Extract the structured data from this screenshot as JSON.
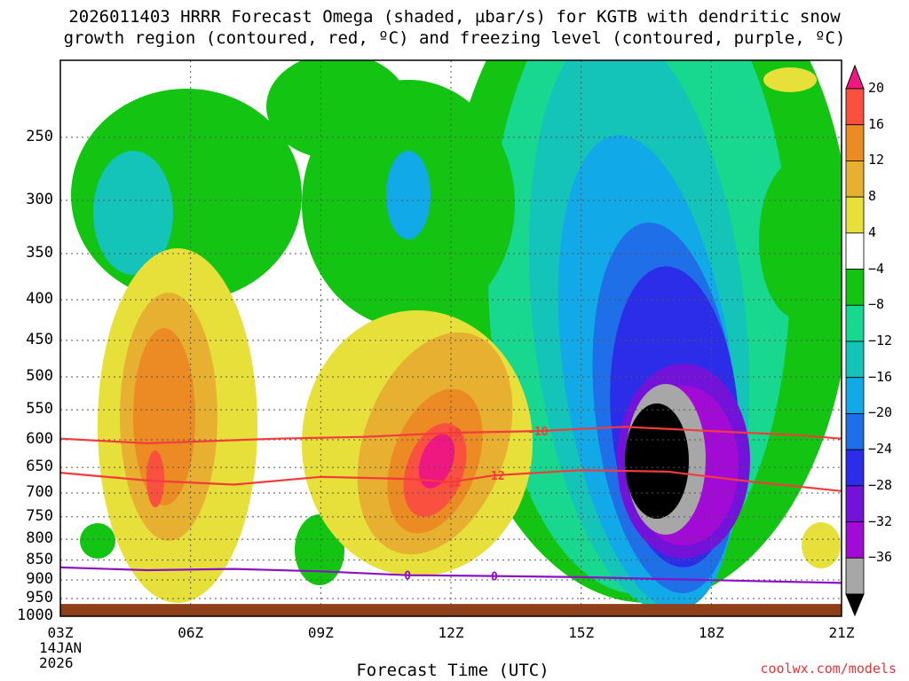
{
  "title": {
    "line1": "2026011403 HRRR Forecast Omega (shaded, µbar/s) for KGTB with dendritic snow",
    "line2": "growth region (contoured, red, ºC) and freezing level (contoured, purple, ºC)"
  },
  "footer": {
    "xlabel": "Forecast Time (UTC)",
    "credit": "coolwx.com/models"
  },
  "colors": {
    "ground": "#8f3f19",
    "temp_contour": "#f23b3b",
    "freezing_contour": "#8a12c4",
    "omega_scale": [
      "#000000",
      "#a7a7a7",
      "#a20ad6",
      "#7313d9",
      "#2b2de8",
      "#1f70e8",
      "#12a9e8",
      "#14c4b8",
      "#18d890",
      "#13c413",
      "#ffffff",
      "#e8e03a",
      "#e8b030",
      "#ec8a24",
      "#fa5040",
      "#ee1880"
    ]
  },
  "chart_data": {
    "type": "heatmap",
    "title": "2026011403 HRRR Forecast Omega (shaded, µbar/s) for KGTB with dendritic snow growth region (contoured, red, ºC) and freezing level (contoured, purple, ºC)",
    "xlabel": "Forecast Time (UTC)",
    "ylabel": "",
    "x_ticks": [
      "03Z",
      "06Z",
      "09Z",
      "12Z",
      "15Z",
      "18Z",
      "21Z"
    ],
    "x_date": [
      "14JAN",
      "2026"
    ],
    "x_range_hours_utc": [
      3,
      21
    ],
    "y_ticks_hpa": [
      250,
      300,
      350,
      400,
      450,
      500,
      550,
      600,
      650,
      700,
      750,
      800,
      850,
      900,
      950,
      1000
    ],
    "y_range_hpa": [
      200,
      1000
    ],
    "surface_pressure_hpa": 965,
    "grid": true,
    "colorbar": {
      "levels": [
        -36,
        -32,
        -28,
        -24,
        -20,
        -16,
        -12,
        -8,
        -4,
        4,
        8,
        12,
        16,
        20
      ],
      "tick_labels": [
        "20",
        "16",
        "12",
        "8",
        "4",
        "−4",
        "−8",
        "−12",
        "−16",
        "−20",
        "−24",
        "−28",
        "−32",
        "−36"
      ],
      "units": "µbar/s"
    },
    "omega_features": [
      {
        "description": "ascent core",
        "center_hour": 16.8,
        "center_hpa": 660,
        "min_value": -36
      },
      {
        "description": "descent maximum",
        "center_hour": 12.0,
        "center_hpa": 690,
        "max_value": 20
      },
      {
        "description": "descent maximum",
        "center_hour": 5.0,
        "center_hpa": 680,
        "max_value": 16
      }
    ],
    "series": [
      {
        "name": "-18",
        "label": "-18",
        "color": "#f23b3b",
        "x": [
          3,
          5,
          8,
          10,
          12,
          14,
          16,
          18,
          20,
          21
        ],
        "y": [
          598,
          606,
          598,
          595,
          588,
          585,
          578,
          585,
          592,
          598
        ]
      },
      {
        "name": "-12",
        "label": "-12",
        "color": "#f23b3b",
        "x": [
          3,
          5,
          7,
          9,
          11,
          12,
          13,
          15,
          17,
          19,
          21
        ],
        "y": [
          660,
          675,
          683,
          668,
          672,
          678,
          665,
          655,
          658,
          678,
          696
        ]
      },
      {
        "name": "0",
        "label": "0",
        "color": "#8a12c4",
        "x": [
          3,
          5,
          7,
          9,
          11,
          13,
          15,
          17,
          19,
          21
        ],
        "y": [
          868,
          875,
          872,
          878,
          888,
          890,
          893,
          898,
          903,
          908
        ]
      }
    ]
  }
}
